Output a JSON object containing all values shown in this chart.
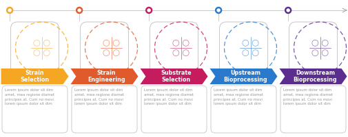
{
  "steps": [
    {
      "label": "Strain\nSelection",
      "color": "#F5A623",
      "dot_color": "#F5A623"
    },
    {
      "label": "Strain\nEngineering",
      "color": "#E05A2B",
      "dot_color": "#E05A2B"
    },
    {
      "label": "Substrate\nSelection",
      "color": "#C41C5E",
      "dot_color": "#C41C5E"
    },
    {
      "label": "Upstream\nBioprocessing",
      "color": "#2979CC",
      "dot_color": "#2979CC"
    },
    {
      "label": "Downstream\nBioprocessing",
      "color": "#5B2D8E",
      "dot_color": "#5B2D8E"
    }
  ],
  "lorem_text": "Lorem ipsum dolor sit dim\namet, mea regione diamet\nprincipes at. Cum no movi\nlorem ipsum dolor sit dim",
  "bg_color": "#FFFFFF",
  "line_color": "#CCCCCC",
  "text_color_label": "#FFFFFF",
  "text_color_body": "#999999",
  "title_fontsize": 5.8,
  "body_fontsize": 3.9
}
